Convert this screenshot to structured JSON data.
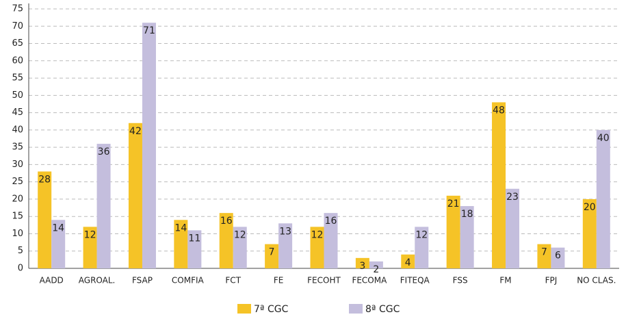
{
  "chart_data": {
    "type": "bar",
    "categories": [
      "AADD",
      "AGROAL.",
      "FSAP",
      "COMFIA",
      "FCT",
      "FE",
      "FECOHT",
      "FECOMA",
      "FITEQA",
      "FSS",
      "FM",
      "FPJ",
      "NO CLAS."
    ],
    "series": [
      {
        "name": "7ª CGC",
        "color": "#f5c327",
        "values": [
          28,
          12,
          42,
          14,
          16,
          7,
          12,
          3,
          4,
          21,
          48,
          7,
          20
        ]
      },
      {
        "name": "8ª CGC",
        "color": "#c4bedd",
        "values": [
          14,
          36,
          71,
          11,
          12,
          13,
          16,
          2,
          12,
          18,
          23,
          6,
          40
        ]
      }
    ],
    "ylim": [
      0,
      75
    ],
    "yticks": [
      0,
      5,
      10,
      15,
      20,
      25,
      30,
      35,
      40,
      45,
      50,
      55,
      60,
      65,
      70,
      75
    ],
    "grid": true,
    "legend": "bottom"
  }
}
